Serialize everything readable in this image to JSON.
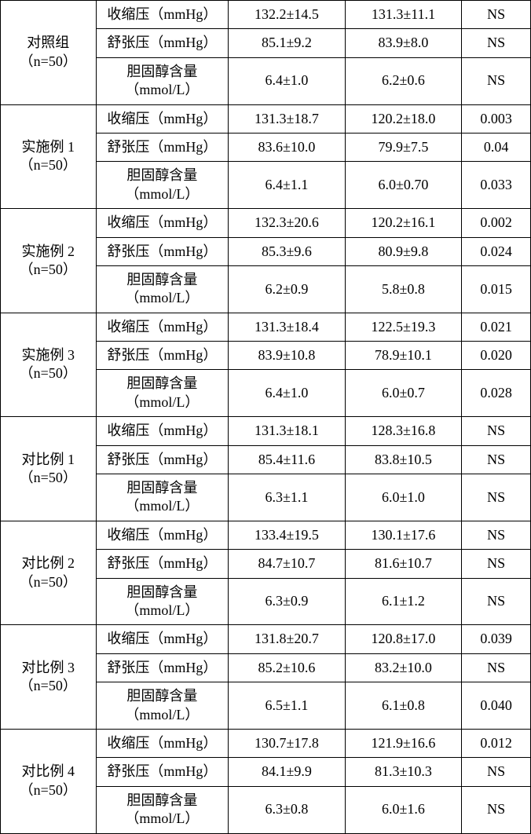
{
  "table": {
    "background_color": "#ffffff",
    "border_color": "#000000",
    "text_color": "#000000",
    "font_size_pt": 14,
    "col_widths_pct": [
      18,
      25,
      22,
      22,
      13
    ],
    "row_labels_metric": {
      "sbp": "收缩压（mmHg）",
      "dbp": "舒张压（mmHg）",
      "chol_l1": "胆固醇含量",
      "chol_l2": "（mmol/L）"
    },
    "groups": [
      {
        "label_l1": "对照组",
        "label_l2": "（n=50）",
        "rows": [
          {
            "metric": "sbp",
            "v1": "132.2±14.5",
            "v2": "131.3±11.1",
            "p": "NS"
          },
          {
            "metric": "dbp",
            "v1": "85.1±9.2",
            "v2": "83.9±8.0",
            "p": "NS"
          },
          {
            "metric": "chol",
            "v1": "6.4±1.0",
            "v2": "6.2±0.6",
            "p": "NS"
          }
        ]
      },
      {
        "label_l1": "实施例 1",
        "label_l2": "（n=50）",
        "rows": [
          {
            "metric": "sbp",
            "v1": "131.3±18.7",
            "v2": "120.2±18.0",
            "p": "0.003"
          },
          {
            "metric": "dbp",
            "v1": "83.6±10.0",
            "v2": "79.9±7.5",
            "p": "0.04"
          },
          {
            "metric": "chol",
            "v1": "6.4±1.1",
            "v2": "6.0±0.70",
            "p": "0.033"
          }
        ]
      },
      {
        "label_l1": "实施例 2",
        "label_l2": "（n=50）",
        "rows": [
          {
            "metric": "sbp",
            "v1": "132.3±20.6",
            "v2": "120.2±16.1",
            "p": "0.002"
          },
          {
            "metric": "dbp",
            "v1": "85.3±9.6",
            "v2": "80.9±9.8",
            "p": "0.024"
          },
          {
            "metric": "chol",
            "v1": "6.2±0.9",
            "v2": "5.8±0.8",
            "p": "0.015"
          }
        ]
      },
      {
        "label_l1": "实施例 3",
        "label_l2": "（n=50）",
        "rows": [
          {
            "metric": "sbp",
            "v1": "131.3±18.4",
            "v2": "122.5±19.3",
            "p": "0.021"
          },
          {
            "metric": "dbp",
            "v1": "83.9±10.8",
            "v2": "78.9±10.1",
            "p": "0.020"
          },
          {
            "metric": "chol",
            "v1": "6.4±1.0",
            "v2": "6.0±0.7",
            "p": "0.028"
          }
        ]
      },
      {
        "label_l1": "对比例 1",
        "label_l2": "（n=50）",
        "rows": [
          {
            "metric": "sbp",
            "v1": "131.3±18.1",
            "v2": "128.3±16.8",
            "p": "NS"
          },
          {
            "metric": "dbp",
            "v1": "85.4±11.6",
            "v2": "83.8±10.5",
            "p": "NS"
          },
          {
            "metric": "chol",
            "v1": "6.3±1.1",
            "v2": "6.0±1.0",
            "p": "NS"
          }
        ]
      },
      {
        "label_l1": "对比例 2",
        "label_l2": "（n=50）",
        "rows": [
          {
            "metric": "sbp",
            "v1": "133.4±19.5",
            "v2": "130.1±17.6",
            "p": "NS"
          },
          {
            "metric": "dbp",
            "v1": "84.7±10.7",
            "v2": "81.6±10.7",
            "p": "NS"
          },
          {
            "metric": "chol",
            "v1": "6.3±0.9",
            "v2": "6.1±1.2",
            "p": "NS"
          }
        ]
      },
      {
        "label_l1": "对比例 3",
        "label_l2": "（n=50）",
        "rows": [
          {
            "metric": "sbp",
            "v1": "131.8±20.7",
            "v2": "120.8±17.0",
            "p": "0.039"
          },
          {
            "metric": "dbp",
            "v1": "85.2±10.6",
            "v2": "83.2±10.0",
            "p": "NS"
          },
          {
            "metric": "chol",
            "v1": "6.5±1.1",
            "v2": "6.1±0.8",
            "p": "0.040"
          }
        ]
      },
      {
        "label_l1": "对比例 4",
        "label_l2": "（n=50）",
        "rows": [
          {
            "metric": "sbp",
            "v1": "130.7±17.8",
            "v2": "121.9±16.6",
            "p": "0.012"
          },
          {
            "metric": "dbp",
            "v1": "84.1±9.9",
            "v2": "81.3±10.3",
            "p": "NS"
          },
          {
            "metric": "chol",
            "v1": "6.3±0.8",
            "v2": "6.0±1.6",
            "p": "NS"
          }
        ]
      }
    ]
  }
}
